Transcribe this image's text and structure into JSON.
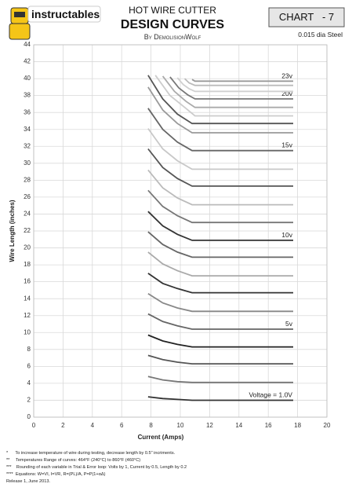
{
  "header": {
    "logo": "instructables",
    "title": "HOT WIRE CUTTER",
    "subtitle": "DESIGN CURVES",
    "author": "By DemolisionWolf",
    "chart_id": "CHART   - 7",
    "material": "0.015 dia Steel"
  },
  "chart_data": {
    "type": "line",
    "x_label": "Current (Amps)",
    "y_label": "Wire Length (inches)",
    "xlim": [
      0,
      20
    ],
    "xticks": [
      0,
      2,
      4,
      6,
      8,
      10,
      12,
      14,
      16,
      18,
      20
    ],
    "ylim": [
      0,
      44
    ],
    "yticks": [
      0,
      2,
      4,
      6,
      8,
      10,
      12,
      14,
      16,
      18,
      20,
      22,
      24,
      26,
      28,
      30,
      32,
      34,
      36,
      38,
      40,
      42,
      44
    ],
    "grid": true,
    "series": [
      {
        "color": "#333333",
        "label": "Voltage = 1.0V",
        "x": [
          7.8,
          8.8,
          9.8,
          10.8,
          17.7
        ],
        "values": [
          2.4,
          2.2,
          2.1,
          2.0,
          2.0
        ]
      },
      {
        "color": "#777777",
        "x": [
          7.8,
          8.8,
          9.8,
          10.8,
          17.7
        ],
        "values": [
          4.8,
          4.4,
          4.2,
          4.1,
          4.1
        ]
      },
      {
        "color": "#555555",
        "x": [
          7.8,
          8.8,
          9.8,
          10.8,
          17.7
        ],
        "values": [
          7.3,
          6.8,
          6.5,
          6.3,
          6.3
        ]
      },
      {
        "color": "#222222",
        "x": [
          7.8,
          8.8,
          9.8,
          10.8,
          17.7
        ],
        "values": [
          9.7,
          9.0,
          8.6,
          8.3,
          8.3
        ]
      },
      {
        "color": "#666666",
        "label": "5v",
        "x": [
          7.8,
          8.8,
          9.8,
          10.8,
          17.7
        ],
        "values": [
          12.2,
          11.3,
          10.8,
          10.4,
          10.4
        ]
      },
      {
        "color": "#888888",
        "x": [
          7.8,
          8.8,
          9.8,
          10.8,
          17.7
        ],
        "values": [
          14.6,
          13.5,
          12.9,
          12.5,
          12.5
        ]
      },
      {
        "color": "#333333",
        "x": [
          7.8,
          8.8,
          9.8,
          10.8,
          17.7
        ],
        "values": [
          17.0,
          15.8,
          15.2,
          14.7,
          14.7
        ]
      },
      {
        "color": "#aaaaaa",
        "x": [
          7.8,
          8.8,
          9.8,
          10.8,
          17.7
        ],
        "values": [
          19.5,
          18.1,
          17.3,
          16.7,
          16.7
        ]
      },
      {
        "color": "#666666",
        "x": [
          7.8,
          8.8,
          9.8,
          10.8,
          17.7
        ],
        "values": [
          21.9,
          20.4,
          19.5,
          18.9,
          18.9
        ]
      },
      {
        "color": "#333333",
        "label": "10v",
        "x": [
          7.8,
          8.8,
          9.8,
          10.8,
          17.7
        ],
        "values": [
          24.3,
          22.6,
          21.6,
          20.9,
          20.9
        ]
      },
      {
        "color": "#777777",
        "x": [
          7.8,
          8.8,
          9.8,
          10.8,
          17.7
        ],
        "values": [
          26.8,
          24.9,
          23.8,
          23.0,
          23.0
        ]
      },
      {
        "color": "#bbbbbb",
        "x": [
          7.8,
          8.8,
          9.8,
          10.8,
          17.7
        ],
        "values": [
          29.2,
          27.1,
          25.9,
          25.1,
          25.1
        ]
      },
      {
        "color": "#555555",
        "x": [
          7.8,
          8.8,
          9.8,
          10.8,
          17.7
        ],
        "values": [
          31.7,
          29.5,
          28.2,
          27.3,
          27.3
        ]
      },
      {
        "color": "#c8c8c8",
        "x": [
          7.8,
          8.8,
          9.8,
          10.8,
          17.7
        ],
        "values": [
          34.1,
          31.7,
          30.3,
          29.3,
          29.3
        ]
      },
      {
        "color": "#666666",
        "label": "15v",
        "x": [
          7.8,
          8.8,
          9.8,
          10.8,
          17.7
        ],
        "values": [
          36.5,
          34.0,
          32.5,
          31.5,
          31.5
        ]
      },
      {
        "color": "#999999",
        "x": [
          7.8,
          8.8,
          9.8,
          10.8,
          17.7
        ],
        "values": [
          39.0,
          36.3,
          34.7,
          33.6,
          33.6
        ]
      },
      {
        "color": "#555555",
        "x": [
          7.8,
          8.8,
          9.8,
          10.8,
          17.7
        ],
        "values": [
          40.4,
          37.6,
          35.8,
          34.7,
          34.7
        ]
      },
      {
        "color": "#cccccc",
        "x": [
          8.3,
          9.3,
          10.3,
          11.0,
          17.7
        ],
        "values": [
          40.4,
          38.0,
          36.6,
          35.6,
          35.6
        ]
      },
      {
        "color": "#aaaaaa",
        "x": [
          8.8,
          9.6,
          10.4,
          11.0,
          17.7
        ],
        "values": [
          40.3,
          38.5,
          37.3,
          36.6,
          36.6
        ]
      },
      {
        "color": "#777777",
        "label": "20v",
        "x": [
          9.3,
          9.9,
          10.5,
          11.0,
          17.7
        ],
        "values": [
          40.2,
          38.9,
          38.1,
          37.6,
          37.6
        ]
      },
      {
        "color": "#d0d0d0",
        "x": [
          9.8,
          10.2,
          10.6,
          11.0,
          17.7
        ],
        "values": [
          40.1,
          39.3,
          38.8,
          38.5,
          38.5
        ]
      },
      {
        "color": "#bbbbbb",
        "x": [
          10.3,
          10.6,
          11.0,
          17.7
        ],
        "values": [
          40.0,
          39.5,
          39.2,
          39.2
        ]
      },
      {
        "color": "#999999",
        "label": "23v",
        "x": [
          10.8,
          11.0,
          17.7
        ],
        "values": [
          39.9,
          39.7,
          39.7
        ]
      }
    ]
  },
  "footnotes": [
    "*      To increase temperature of wire during testing, decrease length by 0.5\" incriments.",
    "**     Temperatures Range of curves: 464°F (240°C) to 860°F (460°C)",
    "***    Rounding of each variable in Trial & Error loop: Volts by 1, Current by 0.5, Length by 0.2",
    "****  Equations: W=VI, I=VR, R=(PL)/A, P=P(1+αΔ)",
    "Release 1, June 2013."
  ]
}
